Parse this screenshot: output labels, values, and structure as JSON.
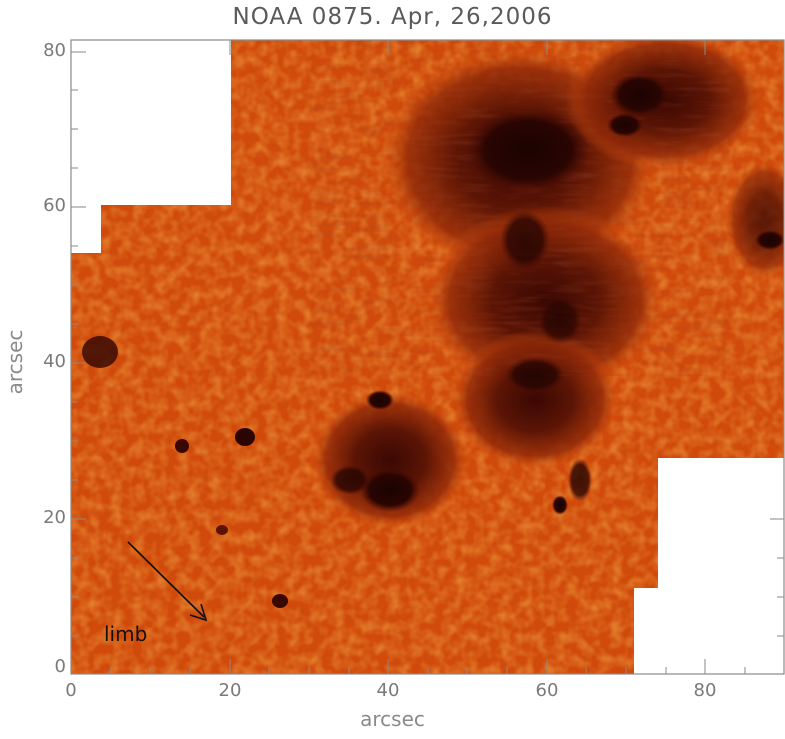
{
  "figure": {
    "title": "NOAA 0875. Apr, 26,2006",
    "xlabel": "arcsec",
    "ylabel": "arcsec",
    "x_ticks": [
      "0",
      "20",
      "40",
      "60",
      "80"
    ],
    "y_ticks": [
      "0",
      "20",
      "40",
      "60",
      "80"
    ],
    "annotation": "limb",
    "colors": {
      "photosphere": "#d9520e",
      "granule_light": "#f07a1e",
      "sunspot_umbra": "#2a0502",
      "penumbra": "#6e1806",
      "frame": "#8a8a8a",
      "background": "#ffffff"
    }
  }
}
